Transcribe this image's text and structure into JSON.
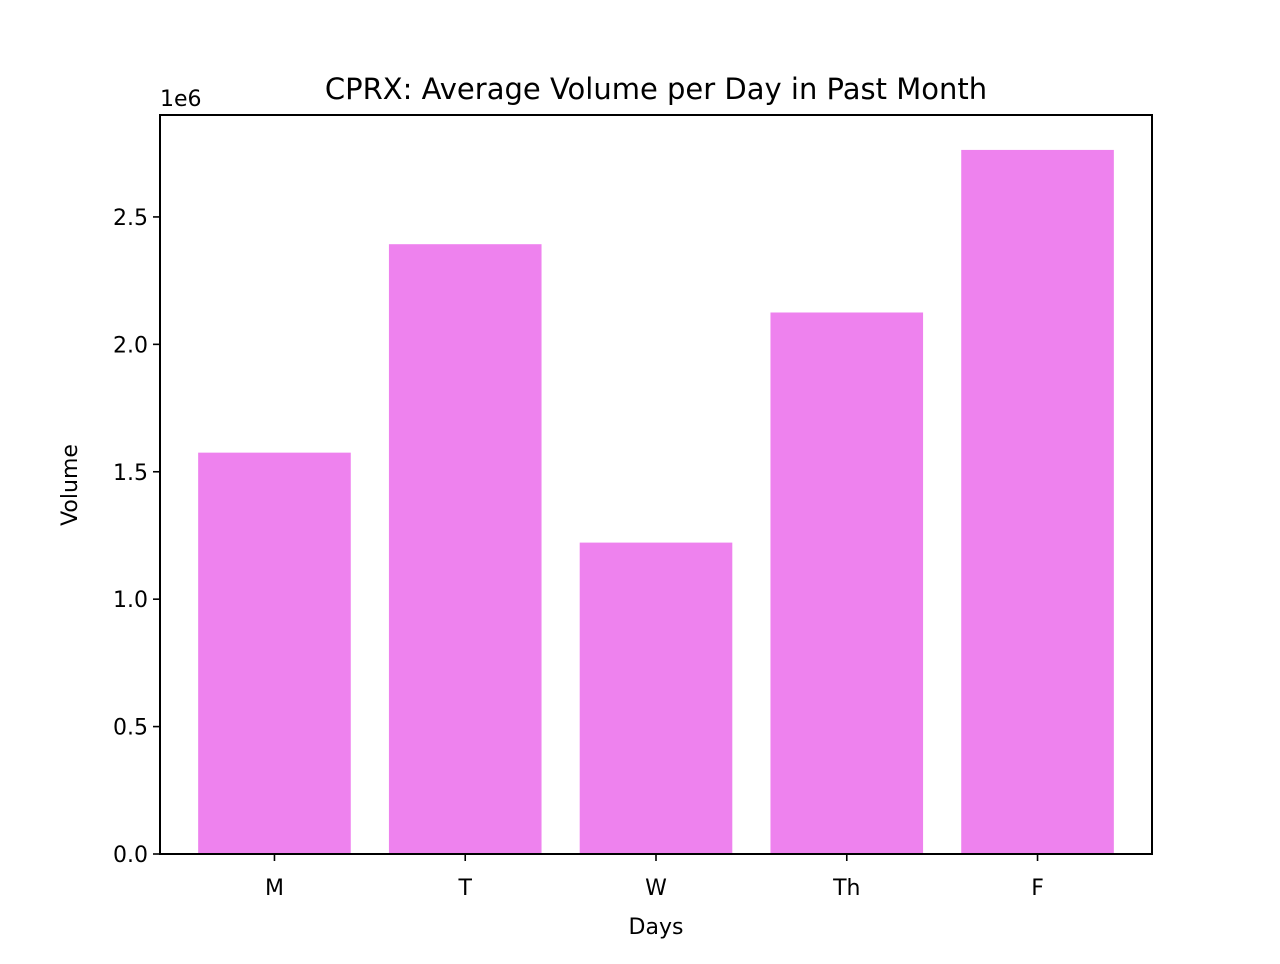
{
  "chart_data": {
    "type": "bar",
    "title": "CPRX: Average Volume per Day in Past Month",
    "xlabel": "Days",
    "ylabel": "Volume",
    "y_offset_label": "1e6",
    "categories": [
      "M",
      "T",
      "W",
      "Th",
      "F"
    ],
    "values": [
      1575000,
      2393000,
      1222000,
      2125000,
      2763000
    ],
    "ylim": [
      0,
      2900000
    ],
    "yticks": [
      0,
      500000,
      1000000,
      1500000,
      2000000,
      2500000
    ],
    "ytick_labels": [
      "0.0",
      "0.5",
      "1.0",
      "1.5",
      "2.0",
      "2.5"
    ],
    "bar_color": "#ee82ee",
    "grid": false,
    "legend": "none"
  }
}
